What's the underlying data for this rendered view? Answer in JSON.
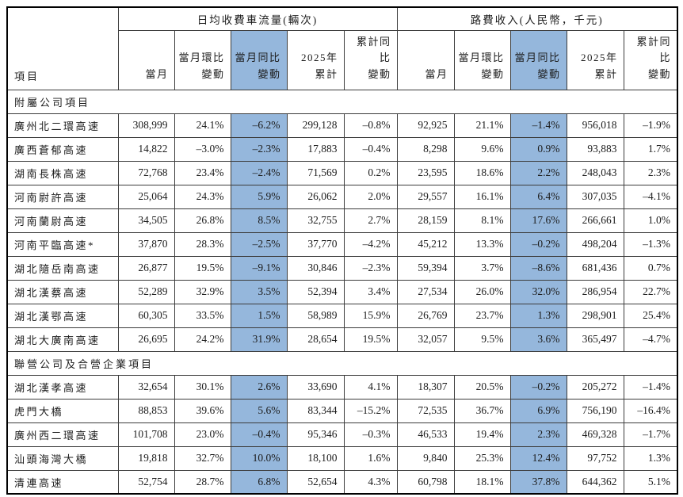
{
  "colors": {
    "highlight": "#95B7DC",
    "border_inner": "#3c3c3c",
    "border_outer": "#000000",
    "text": "#1c1c1c"
  },
  "table": {
    "corner_header": "項目",
    "group_headers": [
      {
        "label": "日均收費車流量(輛次)"
      },
      {
        "label": "路費收入(人民幣，千元)"
      }
    ],
    "sub_headers": [
      "當月",
      "當月環比\n變動",
      "當月同比\n變動",
      "2025年\n累計",
      "累計同比\n變動"
    ],
    "column_keys": [
      "traffic-current",
      "traffic-mom-change",
      "traffic-yoy-change",
      "traffic-ytd-2025",
      "traffic-ytd-yoy-change",
      "revenue-current",
      "revenue-mom-change",
      "revenue-yoy-change",
      "revenue-ytd-2025",
      "revenue-ytd-yoy-change"
    ],
    "highlight_column_indexes": [
      2,
      7
    ],
    "sections": [
      {
        "title": "附屬公司項目",
        "rows": [
          {
            "name": "廣州北二環高速",
            "values": [
              "308,999",
              "24.1%",
              "–6.2%",
              "299,128",
              "–0.8%",
              "92,925",
              "21.1%",
              "–1.4%",
              "956,018",
              "–1.9%"
            ]
          },
          {
            "name": "廣西蒼郁高速",
            "values": [
              "14,822",
              "–3.0%",
              "–2.3%",
              "17,883",
              "–0.4%",
              "8,298",
              "9.6%",
              "0.9%",
              "93,883",
              "1.7%"
            ]
          },
          {
            "name": "湖南長株高速",
            "values": [
              "72,768",
              "23.4%",
              "–2.4%",
              "71,569",
              "0.2%",
              "23,595",
              "18.6%",
              "2.2%",
              "248,043",
              "2.3%"
            ]
          },
          {
            "name": "河南尉許高速",
            "values": [
              "25,064",
              "24.3%",
              "5.9%",
              "26,062",
              "2.0%",
              "29,557",
              "16.1%",
              "6.4%",
              "307,035",
              "–4.1%"
            ]
          },
          {
            "name": "河南蘭尉高速",
            "values": [
              "34,505",
              "26.8%",
              "8.5%",
              "32,755",
              "2.7%",
              "28,159",
              "8.1%",
              "17.6%",
              "266,661",
              "1.0%"
            ]
          },
          {
            "name": "河南平臨高速*",
            "values": [
              "37,870",
              "28.3%",
              "–2.5%",
              "37,770",
              "–4.2%",
              "45,212",
              "13.3%",
              "–0.2%",
              "498,204",
              "–1.3%"
            ]
          },
          {
            "name": "湖北隨岳南高速",
            "values": [
              "26,877",
              "19.5%",
              "–9.1%",
              "30,846",
              "–2.3%",
              "59,394",
              "3.7%",
              "–8.6%",
              "681,436",
              "0.7%"
            ]
          },
          {
            "name": "湖北漢蔡高速",
            "values": [
              "52,289",
              "32.9%",
              "3.5%",
              "52,394",
              "3.4%",
              "27,534",
              "26.0%",
              "32.0%",
              "286,954",
              "22.7%"
            ]
          },
          {
            "name": "湖北漢鄂高速",
            "values": [
              "60,305",
              "33.5%",
              "1.5%",
              "58,989",
              "15.9%",
              "26,769",
              "23.7%",
              "1.3%",
              "298,901",
              "25.4%"
            ]
          },
          {
            "name": "湖北大廣南高速",
            "values": [
              "26,695",
              "24.2%",
              "31.9%",
              "28,654",
              "19.5%",
              "32,057",
              "9.5%",
              "3.6%",
              "365,497",
              "–4.7%"
            ]
          }
        ]
      },
      {
        "title": "聯營公司及合營企業項目",
        "rows": [
          {
            "name": "湖北漢孝高速",
            "values": [
              "32,654",
              "30.1%",
              "2.6%",
              "33,690",
              "4.1%",
              "18,307",
              "20.5%",
              "–0.2%",
              "205,272",
              "–1.4%"
            ]
          },
          {
            "name": "虎門大橋",
            "values": [
              "88,853",
              "39.6%",
              "5.6%",
              "83,344",
              "–15.2%",
              "72,535",
              "36.7%",
              "6.9%",
              "756,190",
              "–16.4%"
            ]
          },
          {
            "name": "廣州西二環高速",
            "values": [
              "101,708",
              "23.0%",
              "–0.4%",
              "95,346",
              "–0.3%",
              "46,533",
              "19.4%",
              "2.3%",
              "469,328",
              "–1.7%"
            ]
          },
          {
            "name": "汕頭海灣大橋",
            "values": [
              "19,818",
              "32.7%",
              "10.0%",
              "18,100",
              "1.6%",
              "9,840",
              "25.3%",
              "12.4%",
              "97,752",
              "1.3%"
            ]
          },
          {
            "name": "清連高速",
            "values": [
              "52,754",
              "28.7%",
              "6.8%",
              "52,654",
              "4.3%",
              "60,798",
              "18.1%",
              "37.8%",
              "644,362",
              "5.1%"
            ]
          }
        ]
      }
    ]
  }
}
